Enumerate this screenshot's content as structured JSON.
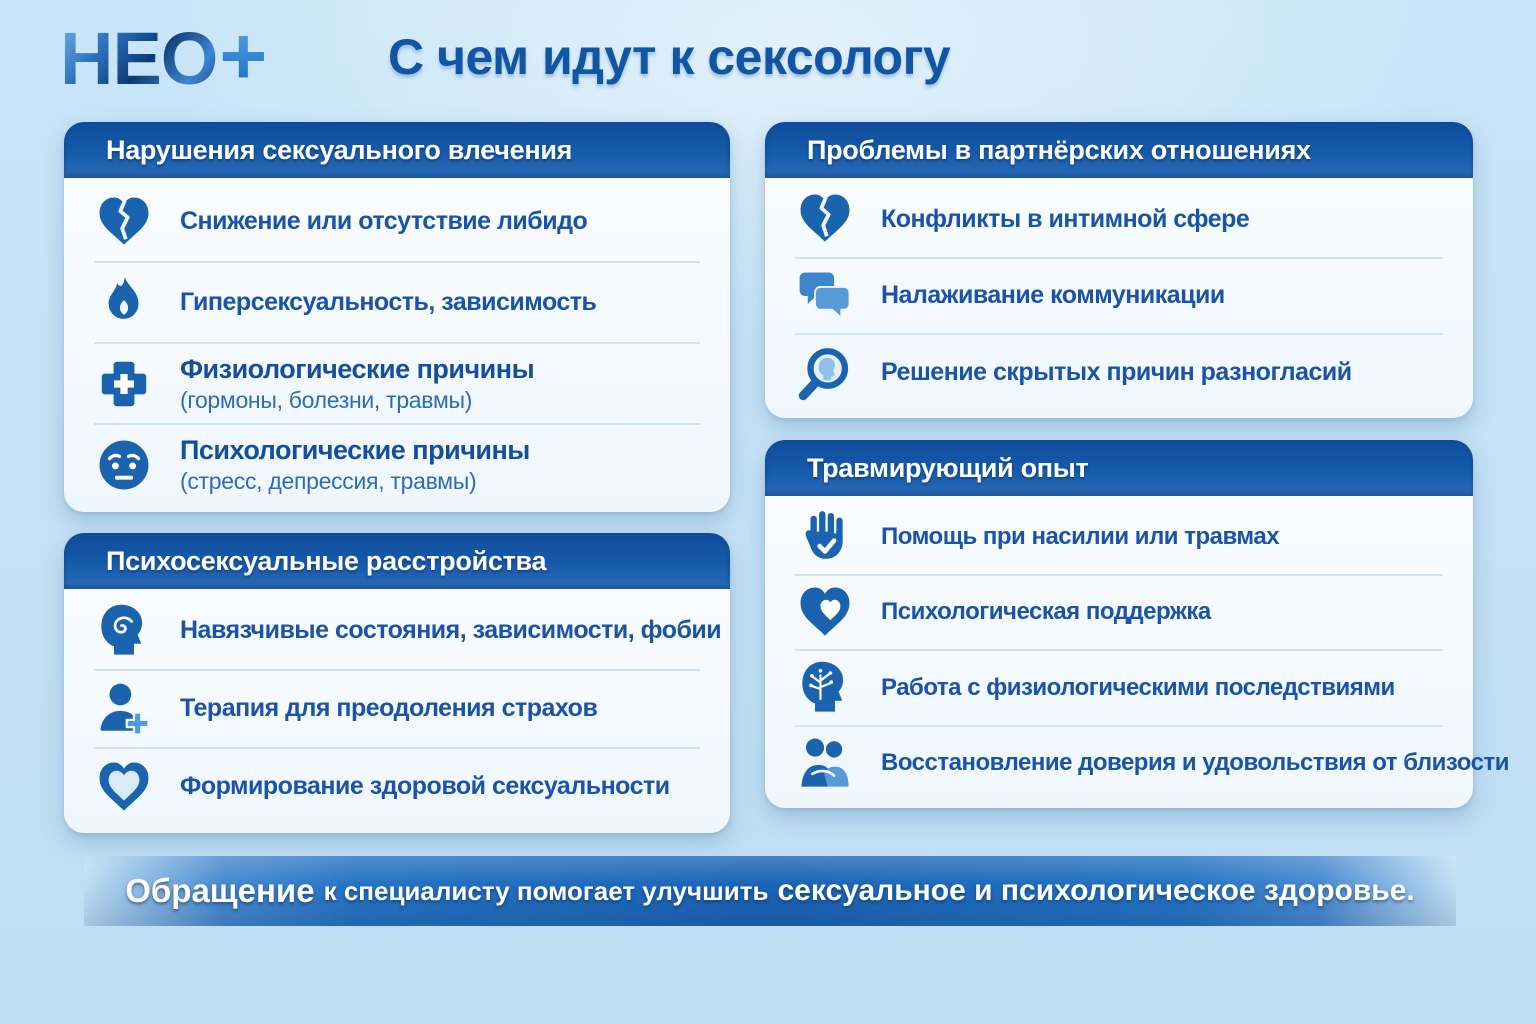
{
  "header": {
    "logo_text": "НЕО",
    "logo_plus": "+",
    "title": "С чем идут к сексологу"
  },
  "cards": [
    {
      "id": "sexual-desire-disorders",
      "title": "Нарушения сексуального влечения",
      "items": [
        {
          "icon": "broken-heart-icon",
          "text": "Снижение или отсутствие либидо"
        },
        {
          "icon": "flame-icon",
          "text": "Гиперсексуальность, зависимость"
        },
        {
          "icon": "medical-cross-icon",
          "text": "Физиологические причины",
          "subtext": "(гормоны, болезни, травмы)"
        },
        {
          "icon": "worried-face-icon",
          "text": "Психологические причины",
          "subtext": "(стресс, депрессия, травмы)"
        }
      ]
    },
    {
      "id": "psychosexual-disorders",
      "title": "Психосексуальные расстройства",
      "items": [
        {
          "icon": "head-spiral-icon",
          "text": "Навязчивые состояния, зависимости, фобии"
        },
        {
          "icon": "person-plus-icon",
          "text": "Терапия для преодоления страхов"
        },
        {
          "icon": "double-heart-icon",
          "text": "Формирование здоровой сексуальности"
        }
      ]
    },
    {
      "id": "partner-relationship-problems",
      "title": "Проблемы в партнёрских отношениях",
      "items": [
        {
          "icon": "broken-heart-icon",
          "text": "Конфликты в интимной сфере"
        },
        {
          "icon": "chat-bubbles-icon",
          "text": "Налаживание коммуникации"
        },
        {
          "icon": "magnifier-head-icon",
          "text": "Решение скрытых причин разногласий"
        }
      ]
    },
    {
      "id": "traumatic-experience",
      "title": "Травмирующий опыт",
      "items": [
        {
          "icon": "stop-hand-icon",
          "text": "Помощь при насилии или травмах"
        },
        {
          "icon": "heart-care-icon",
          "text": "Психологическая поддержка"
        },
        {
          "icon": "head-tree-icon",
          "text": "Работа с физиологическими последствиями"
        },
        {
          "icon": "couple-icon",
          "text": "Восстановление доверия и удовольствия от близости"
        }
      ]
    }
  ],
  "footer": {
    "lead": "Обращение",
    "middle": "к специалисту помогает улучшить",
    "emphasis": "сексуальное и психологическое здоровье."
  },
  "colors": {
    "accent": "#1c63af",
    "icon_light": "#549bd8",
    "header_gradient_top": "#0f4d9c",
    "header_gradient_bottom": "#2d6cba",
    "page_background": "#c5e2f5",
    "card_background": "#f2f8fd",
    "item_text": "#1a53a8",
    "separator": "#cfe3f2",
    "footer_background": "#1b64b5",
    "title_color": "#1155a5"
  }
}
